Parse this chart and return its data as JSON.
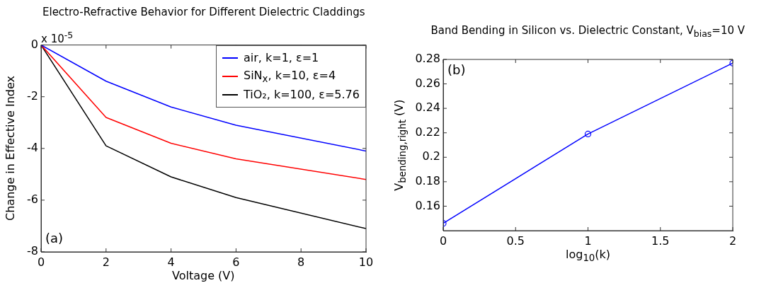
{
  "chart_data": [
    {
      "type": "line",
      "title": "Electro-Refractive Behavior for Different Dielectric Claddings",
      "xlabel": "Voltage (V)",
      "ylabel": "Change in Effective Index",
      "annotations": [
        "x 10$^{-5}$",
        "(a)"
      ],
      "x": [
        0,
        2,
        4,
        6,
        10
      ],
      "series": [
        {
          "name": "air, k=1, ε=1",
          "color": "#0000ff",
          "values": [
            0,
            -1.4,
            -2.4,
            -3.1,
            -4.1
          ]
        },
        {
          "name": "SiN$_{x}$, k=10, ε=4",
          "color": "#ff0000",
          "values": [
            0,
            -2.8,
            -3.8,
            -4.4,
            -5.2
          ]
        },
        {
          "name": "TiO₂, k=100, ε=5.76",
          "color": "#000000",
          "values": [
            0,
            -3.9,
            -5.1,
            -5.9,
            -7.1
          ]
        }
      ],
      "xlim": [
        0,
        10
      ],
      "xticks": [
        0,
        2,
        4,
        6,
        8,
        10
      ],
      "ylim": [
        -8,
        0
      ],
      "yticks": [
        -8,
        -6,
        -4,
        -2,
        0
      ],
      "grid": false,
      "legend": "top right",
      "marker": "none",
      "line_style": "solid"
    },
    {
      "type": "line",
      "title": "Band Bending in Silicon vs. Dielectric Constant, V$_{bias}$=10 V",
      "xlabel": "log$_{10}$(k)",
      "ylabel": "V$_{bending,right}$ (V)",
      "annotations": [
        "(b)"
      ],
      "x": [
        0,
        1,
        2
      ],
      "series": [
        {
          "color": "#0000ff",
          "values": [
            0.146,
            0.219,
            0.277
          ]
        }
      ],
      "xlim": [
        0,
        2
      ],
      "xticks": [
        0,
        0.5,
        1,
        1.5,
        2
      ],
      "ylim": [
        0.14,
        0.28
      ],
      "yticks": [
        0.16,
        0.18,
        0.2,
        0.22,
        0.24,
        0.26,
        0.28
      ],
      "grid": false,
      "legend": false,
      "marker": "circle",
      "line_style": "solid"
    }
  ]
}
